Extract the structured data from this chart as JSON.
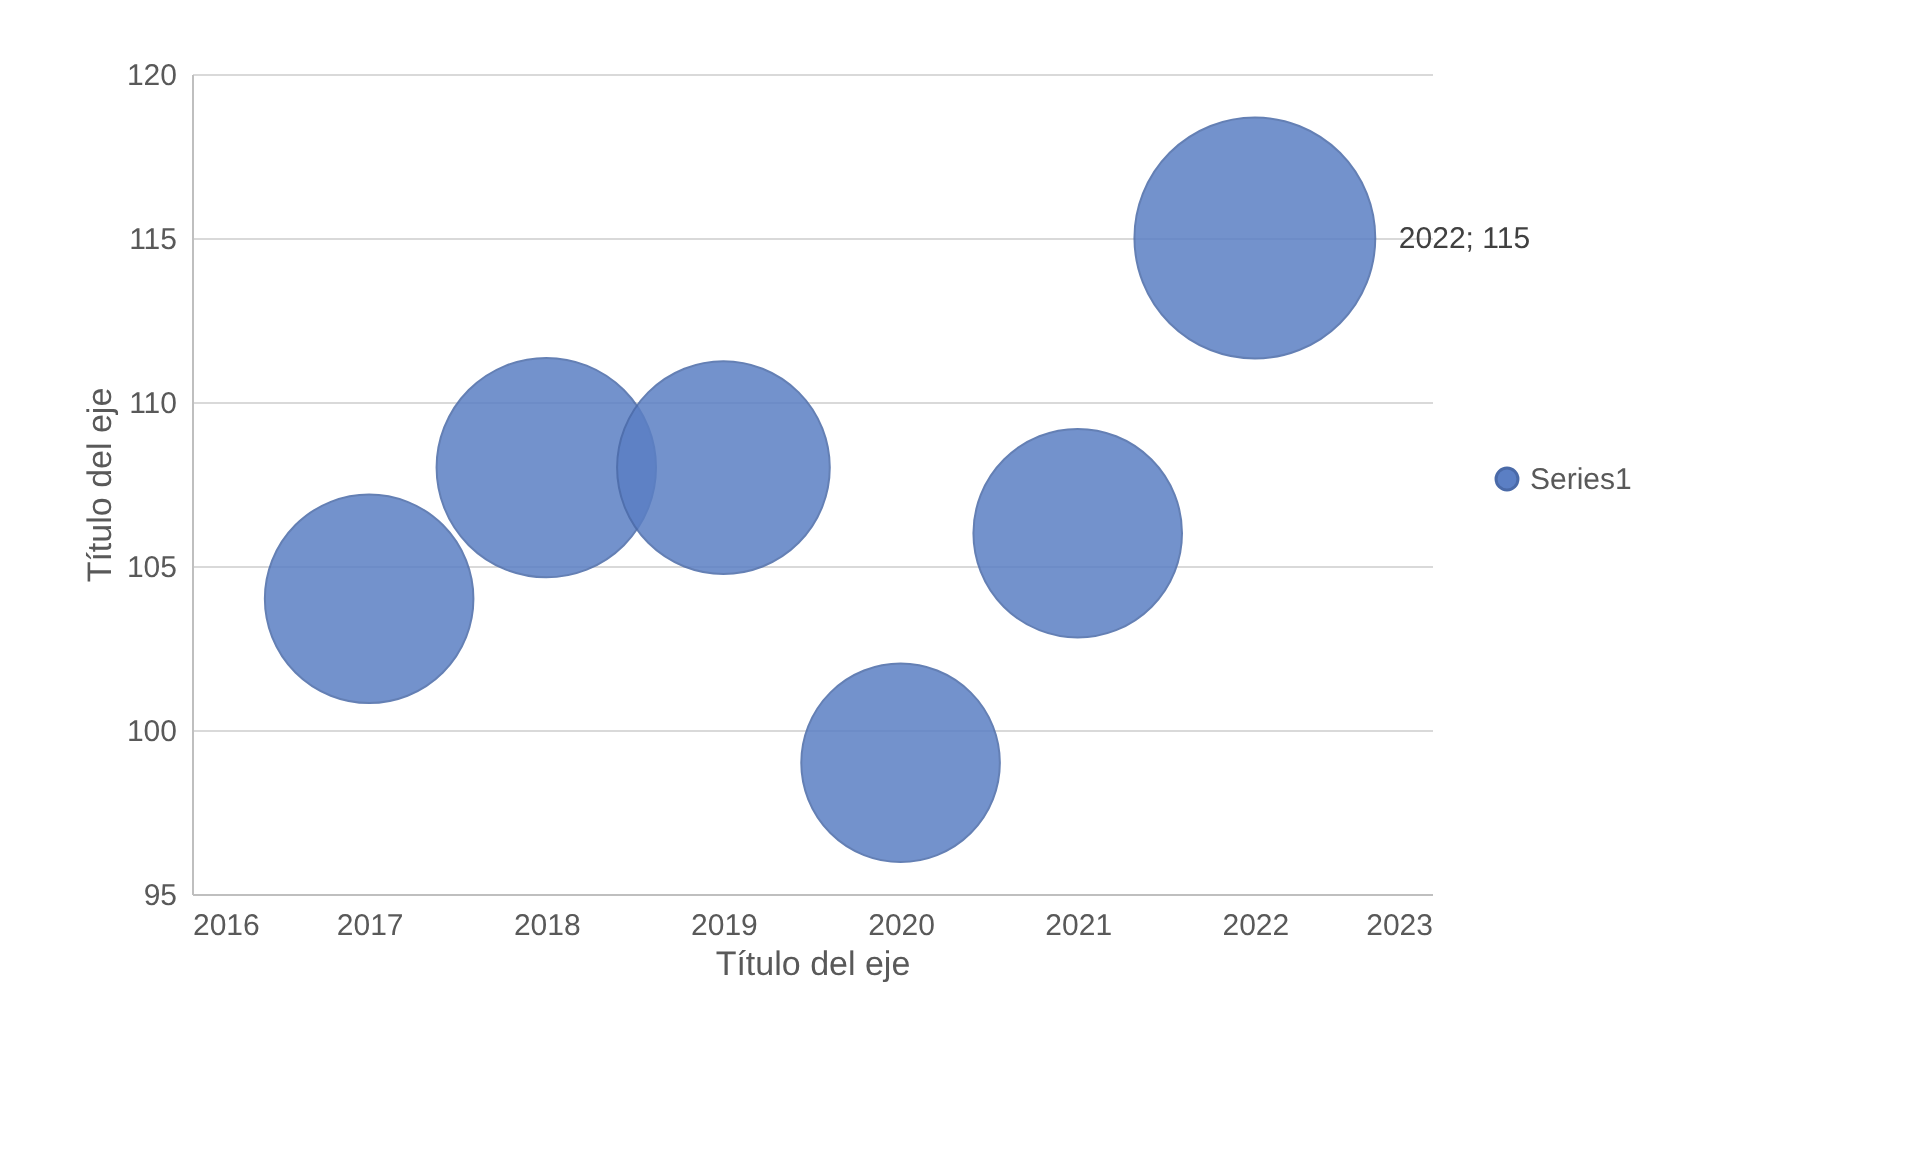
{
  "chart_data": {
    "type": "bubble",
    "xlabel": "Título del eje",
    "ylabel": "Título del eje",
    "x": [
      2017,
      2018,
      2019,
      2020,
      2021,
      2022
    ],
    "series": [
      {
        "name": "Series1",
        "color": "#5b7fc4",
        "values": [
          104,
          108,
          108,
          99,
          106,
          115
        ],
        "sizes": [
          0.75,
          0.83,
          0.78,
          0.68,
          0.75,
          1
        ],
        "value_labels": [
          null,
          null,
          null,
          null,
          null,
          "2022; 115"
        ]
      }
    ],
    "xlim": [
      2016,
      2023
    ],
    "xticks": [
      2016,
      2017,
      2018,
      2019,
      2020,
      2021,
      2022,
      2023
    ],
    "ylim": [
      95,
      120
    ],
    "yticks": [
      95,
      100,
      105,
      110,
      115,
      120
    ],
    "grid": "y",
    "legend": "right"
  }
}
